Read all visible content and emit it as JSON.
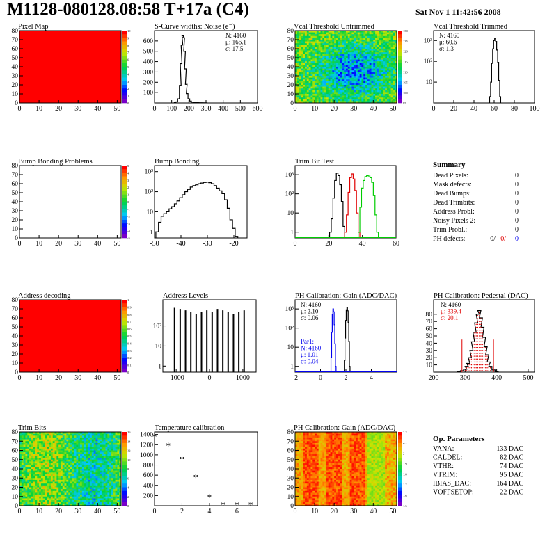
{
  "header": {
    "title": "M1128-080128.08:58 T+17a (C4)",
    "date": "Sat Nov  1 11:42:56 2008"
  },
  "colors": {
    "red": "#ff0000",
    "blue": "#0000ff",
    "green": "#00cc00",
    "black": "#000000"
  },
  "chart_data": [
    {
      "id": "pixel-map",
      "type": "heatmap",
      "title": "Pixel Map",
      "fill": "uniform",
      "xlim": [
        0,
        52
      ],
      "ylim": [
        0,
        80
      ],
      "xticks": [
        "0",
        "10",
        "20",
        "30",
        "40",
        "50"
      ],
      "yticks": [
        "0",
        "10",
        "20",
        "30",
        "40",
        "50",
        "60",
        "70",
        "80"
      ],
      "palette_ticks": [
        "10",
        "9",
        "8",
        "7",
        "6",
        "5",
        "4",
        "3",
        "2",
        "1",
        "0"
      ]
    },
    {
      "id": "scurve-widths",
      "type": "bar",
      "title": "S-Curve widths: Noise (e⁻)",
      "xlim": [
        0,
        600
      ],
      "ylim": [
        0,
        700
      ],
      "xticks": [
        "0",
        "100",
        "200",
        "300",
        "400",
        "500",
        "600"
      ],
      "yticks": [
        "100",
        "200",
        "300",
        "400",
        "500",
        "600"
      ],
      "stats": [
        "N: 4160",
        "μ: 166.1",
        "σ: 17.5"
      ],
      "x": [
        120,
        130,
        140,
        150,
        155,
        160,
        165,
        170,
        175,
        180,
        185,
        190,
        200,
        210,
        220,
        230,
        240,
        250,
        270,
        300
      ],
      "values": [
        3,
        10,
        40,
        170,
        380,
        560,
        650,
        630,
        500,
        330,
        180,
        90,
        40,
        18,
        8,
        6,
        4,
        3,
        2,
        1
      ]
    },
    {
      "id": "vcal-untrimmed",
      "type": "heatmap",
      "title": "Vcal Threshold Untrimmed",
      "fill": "noise",
      "xlim": [
        0,
        52
      ],
      "ylim": [
        0,
        80
      ],
      "xticks": [
        "0",
        "10",
        "20",
        "30",
        "40",
        "50"
      ],
      "yticks": [
        "0",
        "10",
        "20",
        "30",
        "40",
        "50",
        "60",
        "70",
        "80"
      ],
      "palette_ticks": [
        "130",
        "125",
        "120",
        "115",
        "110",
        "105",
        "100",
        "95"
      ]
    },
    {
      "id": "vcal-trimmed",
      "type": "bar",
      "title": "Vcal Threshold Trimmed",
      "log": true,
      "xlim": [
        0,
        100
      ],
      "ylim": [
        1,
        3000
      ],
      "xticks": [
        "0",
        "20",
        "40",
        "60",
        "80",
        "100"
      ],
      "yticks": [
        "10",
        "10²",
        "10³"
      ],
      "stats": [
        "N: 4160",
        "μ: 60.6",
        "σ:  1.3"
      ],
      "x": [
        56,
        57,
        58,
        59,
        60,
        61,
        62,
        63,
        64,
        65,
        66
      ],
      "values": [
        2,
        10,
        80,
        400,
        1000,
        1300,
        900,
        350,
        90,
        12,
        2
      ]
    },
    {
      "id": "bump-bonding-problems",
      "type": "heatmap",
      "title": "Bump Bonding Problems",
      "fill": "empty",
      "xlim": [
        0,
        52
      ],
      "ylim": [
        0,
        80
      ],
      "xticks": [
        "0",
        "10",
        "20",
        "30",
        "40",
        "50"
      ],
      "yticks": [
        "0",
        "10",
        "20",
        "30",
        "40",
        "50",
        "60",
        "70",
        "80"
      ],
      "palette_ticks": [
        "5",
        "4",
        "3",
        "2",
        "1",
        "0",
        "-1",
        "-2",
        "-3",
        "-4",
        "-5"
      ]
    },
    {
      "id": "bump-bonding",
      "type": "bar",
      "title": "Bump Bonding",
      "log": true,
      "xlim": [
        -50,
        -15
      ],
      "ylim": [
        0.5,
        2000
      ],
      "xticks": [
        "-50",
        "-40",
        "-30",
        "-20"
      ],
      "yticks": [
        "1",
        "10",
        "10²",
        "10³"
      ],
      "x": [
        -49,
        -48,
        -47,
        -46,
        -45,
        -44,
        -43,
        -42,
        -41,
        -40,
        -39,
        -38,
        -37,
        -36,
        -35,
        -34,
        -33,
        -32,
        -31,
        -30,
        -29,
        -28,
        -27,
        -26,
        -25,
        -24,
        -23,
        -22,
        -21,
        -20,
        -19
      ],
      "values": [
        1,
        3,
        6,
        8,
        10,
        14,
        18,
        25,
        35,
        50,
        70,
        100,
        130,
        170,
        200,
        220,
        250,
        270,
        290,
        300,
        280,
        250,
        200,
        150,
        110,
        80,
        40,
        15,
        4,
        1.5,
        0.6
      ]
    },
    {
      "id": "trim-bit-test",
      "type": "line",
      "title": "Trim Bit Test",
      "log": true,
      "xlim": [
        0,
        60
      ],
      "ylim": [
        0.5,
        3000
      ],
      "xticks": [
        "0",
        "20",
        "40",
        "60"
      ],
      "yticks": [
        "1",
        "10",
        "10²",
        "10³"
      ],
      "series": [
        {
          "color": "black",
          "x": [
            21,
            22,
            23,
            24,
            25,
            26,
            27,
            28,
            29
          ],
          "values": [
            1,
            5,
            60,
            500,
            1200,
            900,
            300,
            40,
            2
          ]
        },
        {
          "color": "red",
          "x": [
            30,
            31,
            32,
            33,
            34,
            35,
            36,
            37,
            38
          ],
          "values": [
            1,
            8,
            120,
            700,
            1100,
            600,
            150,
            10,
            1
          ]
        },
        {
          "color": "green",
          "x": [
            38,
            39,
            40,
            41,
            42,
            43,
            44,
            45,
            46,
            47,
            48,
            49
          ],
          "values": [
            1,
            20,
            200,
            500,
            800,
            900,
            850,
            700,
            400,
            80,
            8,
            1
          ]
        }
      ]
    },
    {
      "id": "address-decoding",
      "type": "heatmap",
      "title": "Address decoding",
      "fill": "uniform",
      "xlim": [
        0,
        52
      ],
      "ylim": [
        0,
        80
      ],
      "xticks": [
        "0",
        "10",
        "20",
        "30",
        "40",
        "50"
      ],
      "yticks": [
        "0",
        "10",
        "20",
        "30",
        "40",
        "50",
        "60",
        "70",
        "80"
      ],
      "palette_ticks": [
        "1",
        "0.9",
        "0.8",
        "0.7",
        "0.6",
        "0.5",
        "0.4",
        "0.3",
        "0.2",
        "0.1",
        "0"
      ]
    },
    {
      "id": "address-levels",
      "type": "bar",
      "title": "Address Levels",
      "log": true,
      "xlim": [
        -1400,
        1400
      ],
      "ylim": [
        0.5,
        2000
      ],
      "xticks": [
        "-1000",
        "0",
        "1000"
      ],
      "yticks": [
        "1",
        "10",
        "10²"
      ],
      "x": [
        -1050,
        -880,
        -720,
        -560,
        -400,
        -240,
        -80,
        80,
        240,
        400,
        560,
        720,
        880,
        1040
      ],
      "values": [
        800,
        700,
        600,
        500,
        400,
        500,
        600,
        500,
        700,
        600,
        500,
        400,
        500,
        600
      ]
    },
    {
      "id": "ph-gain",
      "type": "line",
      "title": "PH Calibration: Gain (ADC/DAC)",
      "log": true,
      "xlim": [
        -2,
        6
      ],
      "ylim": [
        0.5,
        3000
      ],
      "xticks": [
        "-2",
        "0",
        "2",
        "4"
      ],
      "yticks": [
        "1",
        "10",
        "10²",
        "10³"
      ],
      "stats": [
        "N: 4160",
        "μ: 2.10",
        "σ: 0.06"
      ],
      "stats2": [
        "Par1:",
        "N: 4160",
        "μ: 1.01",
        "σ: 0.04"
      ],
      "series": [
        {
          "color": "black",
          "x": [
            1.9,
            1.95,
            2.0,
            2.05,
            2.1,
            2.15,
            2.2,
            2.25,
            2.3
          ],
          "values": [
            2,
            30,
            250,
            900,
            1200,
            800,
            200,
            20,
            1
          ]
        },
        {
          "color": "blue",
          "x": [
            0.85,
            0.9,
            0.95,
            1.0,
            1.05,
            1.1,
            1.15,
            1.2
          ],
          "values": [
            3,
            60,
            500,
            1000,
            700,
            150,
            15,
            1
          ]
        }
      ]
    },
    {
      "id": "ph-pedestal",
      "type": "bar",
      "title": "PH Calibration: Pedestal (DAC)",
      "xlim": [
        200,
        520
      ],
      "ylim": [
        0,
        100
      ],
      "xticks": [
        "200",
        "300",
        "400",
        "500"
      ],
      "yticks": [
        "10",
        "20",
        "30",
        "40",
        "50",
        "60",
        "70",
        "80"
      ],
      "stats": [
        "N: 4160",
        "μ: 339.4",
        "σ: 20.1"
      ],
      "x": [
        280,
        290,
        300,
        305,
        310,
        315,
        320,
        325,
        330,
        335,
        340,
        345,
        350,
        355,
        360,
        365,
        370,
        375,
        380,
        390,
        400
      ],
      "values": [
        1,
        2,
        4,
        8,
        12,
        20,
        30,
        42,
        55,
        68,
        80,
        85,
        75,
        62,
        48,
        35,
        24,
        14,
        8,
        3,
        1
      ],
      "markers": [
        290,
        390
      ]
    },
    {
      "id": "trim-bits",
      "type": "heatmap",
      "title": "Trim Bits",
      "fill": "noise-green",
      "xlim": [
        0,
        52
      ],
      "ylim": [
        0,
        80
      ],
      "xticks": [
        "0",
        "10",
        "20",
        "30",
        "40",
        "50"
      ],
      "yticks": [
        "0",
        "10",
        "20",
        "30",
        "40",
        "50",
        "60",
        "70",
        "80"
      ],
      "palette_ticks": [
        "16",
        "14",
        "12",
        "10",
        "8",
        "6",
        "4",
        "2",
        "0"
      ]
    },
    {
      "id": "temperature-calibration",
      "type": "scatter",
      "title": "Temperature calibration",
      "xlim": [
        0,
        7.5
      ],
      "ylim": [
        0,
        1450
      ],
      "xticks": [
        "0",
        "2",
        "4",
        "6"
      ],
      "yticks": [
        "200",
        "400",
        "600",
        "800",
        "1000",
        "1200",
        "1400"
      ],
      "x": [
        0,
        1,
        2,
        3,
        4,
        5,
        6,
        7
      ],
      "values": [
        1350,
        1170,
        900,
        550,
        160,
        10,
        10,
        10
      ]
    },
    {
      "id": "ph-gain-map",
      "type": "heatmap",
      "title": "PH Calibration: Gain (ADC/DAC)",
      "fill": "columns",
      "xlim": [
        0,
        52
      ],
      "ylim": [
        0,
        80
      ],
      "xticks": [
        "0",
        "10",
        "20",
        "30",
        "40",
        "50"
      ],
      "yticks": [
        "0",
        "10",
        "20",
        "30",
        "40",
        "50",
        "60",
        "70",
        "80"
      ],
      "palette_ticks": [
        "2.2",
        "2.1",
        "2",
        "1.9",
        "1.8",
        "1.7",
        "1.6",
        "1.5"
      ]
    }
  ],
  "summary": {
    "title": "Summary",
    "rows": [
      {
        "label": "Dead Pixels:",
        "value": "0"
      },
      {
        "label": "Mask defects:",
        "value": "0"
      },
      {
        "label": "Dead Bumps:",
        "value": "0"
      },
      {
        "label": "Dead Trimbits:",
        "value": "0"
      },
      {
        "label": "Address Probl:",
        "value": "0"
      },
      {
        "label": "Noisy Pixels 2:",
        "value": "0"
      },
      {
        "label": "Trim Probl.:",
        "value": "0"
      }
    ],
    "ph_label": "PH defects:",
    "ph_values": [
      "0/",
      "0/",
      "0"
    ]
  },
  "op_params": {
    "title": "Op. Parameters",
    "rows": [
      {
        "label": "VANA:",
        "value": "133 DAC"
      },
      {
        "label": "CALDEL:",
        "value": "82 DAC"
      },
      {
        "label": "VTHR:",
        "value": "74 DAC"
      },
      {
        "label": "VTRIM:",
        "value": "95 DAC"
      },
      {
        "label": "IBIAS_DAC:",
        "value": "164 DAC"
      },
      {
        "label": "VOFFSETOP:",
        "value": "22 DAC"
      }
    ]
  }
}
